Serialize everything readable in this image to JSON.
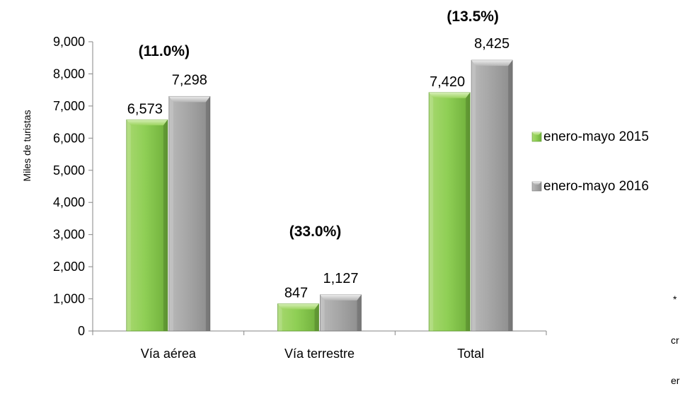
{
  "chart_data": {
    "type": "bar",
    "ylabel": "Miles de turistas",
    "ylim": [
      0,
      9000
    ],
    "yticks": [
      0,
      1000,
      2000,
      3000,
      4000,
      5000,
      6000,
      7000,
      8000,
      9000
    ],
    "ytick_labels": [
      "0",
      "1,000",
      "2,000",
      "3,000",
      "4,000",
      "5,000",
      "6,000",
      "7,000",
      "8,000",
      "9,000"
    ],
    "categories": [
      "Vía aérea",
      "Vía terrestre",
      "Total"
    ],
    "series": [
      {
        "name": "enero-mayo 2015",
        "values": [
          6573,
          847,
          7420
        ],
        "labels": [
          "6,573",
          "847",
          "7,420"
        ],
        "color": "#7dc241"
      },
      {
        "name": "enero-mayo 2016",
        "values": [
          7298,
          1127,
          8425
        ],
        "labels": [
          "7,298",
          "1,127",
          "8,425"
        ],
        "color": "#9a9a9a"
      }
    ],
    "growth_labels": [
      "(11.0%)",
      "(33.0%)",
      "(13.5%)"
    ],
    "legend_position": "right",
    "grid": false
  },
  "notes": [
    "*",
    "cr",
    "er"
  ]
}
